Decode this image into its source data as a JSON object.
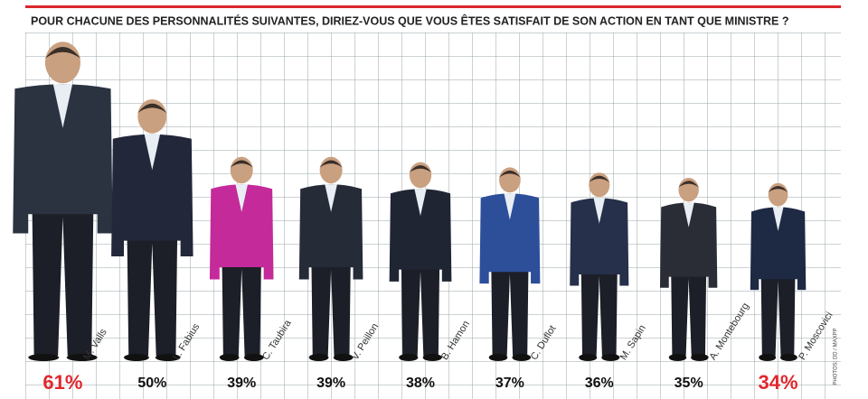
{
  "chart_data": {
    "type": "people",
    "title": "POUR CHACUNE DES PERSONNALITÉS SUIVANTES, DIRIEZ-VOUS QUE VOUS ÊTES SATISFAIT DE SON ACTION EN TANT QUE MINISTRE ?",
    "categories": [
      "M. Valls",
      "L. Fabius",
      "C. Taubira",
      "V. Peillon",
      "B. Hamon",
      "C. Duflot",
      "M. Sapin",
      "A. Montebourg",
      "P. Moscovici"
    ],
    "values": [
      61,
      50,
      39,
      39,
      38,
      37,
      36,
      35,
      34
    ],
    "value_labels": [
      "61%",
      "50%",
      "39%",
      "39%",
      "38%",
      "37%",
      "36%",
      "35%",
      "34%"
    ],
    "colors": [
      "#2b3340",
      "#22283a",
      "#c42a9a",
      "#262b38",
      "#1f2533",
      "#2d4f9a",
      "#26304a",
      "#2a2d36",
      "#1e2a44"
    ],
    "label_colors": [
      "#e0282e",
      "#111111",
      "#111111",
      "#111111",
      "#111111",
      "#111111",
      "#111111",
      "#111111",
      "#e0282e"
    ],
    "credit": "PHOTOS: DD / MAXPP"
  }
}
